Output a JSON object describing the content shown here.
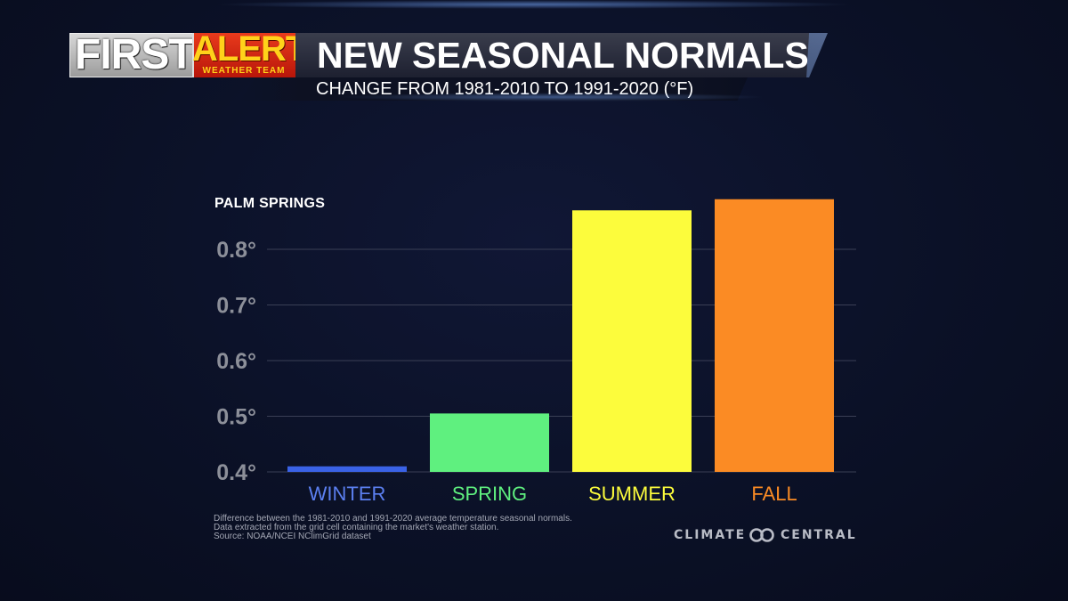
{
  "header": {
    "logo_first": "FIRST",
    "logo_alert": "ALERT",
    "logo_sub": "WEATHER TEAM",
    "title": "NEW SEASONAL NORMALS",
    "subtitle": "CHANGE FROM 1981-2010 TO 1991-2020 (°F)"
  },
  "chart_data": {
    "type": "bar",
    "location_label": "PALM SPRINGS",
    "categories": [
      "WINTER",
      "SPRING",
      "SUMMER",
      "FALL"
    ],
    "values": [
      0.41,
      0.505,
      0.87,
      0.89
    ],
    "category_colors": [
      "#3a62e6",
      "#5ff07f",
      "#fcfc3c",
      "#fb8b24"
    ],
    "label_colors": [
      "#5b7ff0",
      "#5ff07f",
      "#fcfc3c",
      "#fb8b24"
    ],
    "ylim": [
      0.4,
      0.89
    ],
    "yticks": [
      0.4,
      0.5,
      0.6,
      0.7,
      0.8
    ],
    "ytick_labels": [
      "0.4°",
      "0.5°",
      "0.6°",
      "0.7°",
      "0.8°"
    ],
    "grid": true
  },
  "footnote": {
    "line1": "Difference between the 1981-2010 and 1991-2020 average temperature seasonal normals.",
    "line2": "Data extracted from the grid cell containing the market's weather station.",
    "line3": "Source: NOAA/NCEI NClimGrid dataset"
  },
  "brand": {
    "left": "CLIMATE",
    "right": "CENTRAL",
    "icon": "climate-central-logo-icon"
  }
}
